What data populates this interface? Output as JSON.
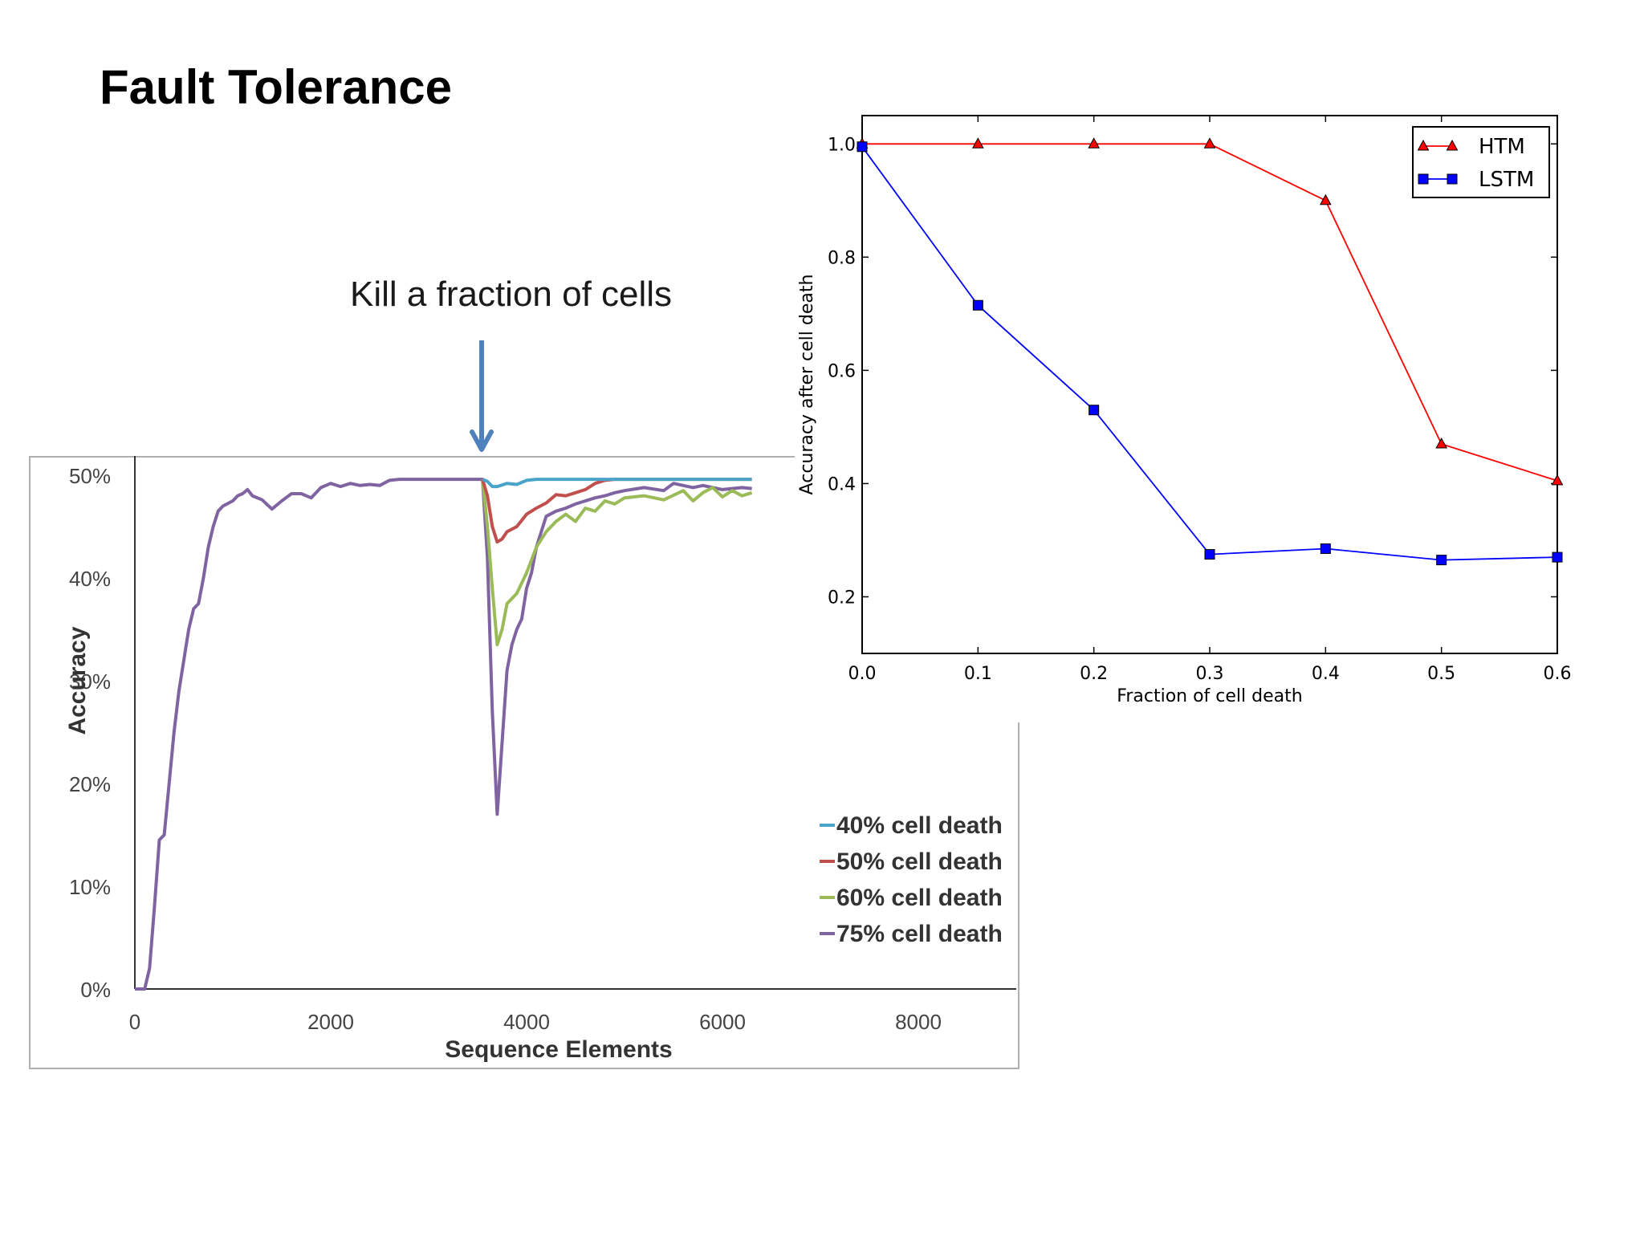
{
  "slide": {
    "title": "Fault Tolerance",
    "annotation": "Kill a fraction of cells"
  },
  "chart_data": [
    {
      "type": "line",
      "title": "",
      "xlabel": "Sequence Elements",
      "ylabel": "Accuracy",
      "xlim": [
        0,
        9000
      ],
      "ylim": [
        0,
        50
      ],
      "x_ticks": [
        "0",
        "2000",
        "4000",
        "6000",
        "8000"
      ],
      "y_ticks": [
        "0%",
        "10%",
        "20%",
        "30%",
        "40%",
        "50%"
      ],
      "legend_position": "bottom-right",
      "series": [
        {
          "name": "40% cell death",
          "color": "#4aa3c8",
          "points": [
            [
              3550,
              49.6
            ],
            [
              3600,
              49.4
            ],
            [
              3650,
              48.9
            ],
            [
              3700,
              48.9
            ],
            [
              3800,
              49.2
            ],
            [
              3900,
              49.1
            ],
            [
              4000,
              49.5
            ],
            [
              4100,
              49.6
            ],
            [
              4200,
              49.6
            ],
            [
              5000,
              49.6
            ],
            [
              6300,
              49.6
            ]
          ]
        },
        {
          "name": "50% cell death",
          "color": "#c0504d",
          "points": [
            [
              3550,
              49.6
            ],
            [
              3600,
              48.0
            ],
            [
              3650,
              45.0
            ],
            [
              3700,
              43.5
            ],
            [
              3750,
              43.8
            ],
            [
              3800,
              44.5
            ],
            [
              3900,
              45.0
            ],
            [
              4000,
              46.2
            ],
            [
              4100,
              46.8
            ],
            [
              4200,
              47.3
            ],
            [
              4300,
              48.1
            ],
            [
              4400,
              48.0
            ],
            [
              4500,
              48.3
            ],
            [
              4600,
              48.6
            ],
            [
              4700,
              49.2
            ],
            [
              4800,
              49.5
            ],
            [
              4900,
              49.6
            ],
            [
              6300,
              49.6
            ]
          ]
        },
        {
          "name": "60% cell death",
          "color": "#9bbb59",
          "points": [
            [
              3550,
              49.6
            ],
            [
              3600,
              45.0
            ],
            [
              3650,
              39.0
            ],
            [
              3700,
              33.5
            ],
            [
              3750,
              35.0
            ],
            [
              3800,
              37.5
            ],
            [
              3900,
              38.5
            ],
            [
              4000,
              40.5
            ],
            [
              4100,
              43.0
            ],
            [
              4200,
              44.5
            ],
            [
              4300,
              45.5
            ],
            [
              4400,
              46.2
            ],
            [
              4500,
              45.5
            ],
            [
              4600,
              46.8
            ],
            [
              4700,
              46.5
            ],
            [
              4800,
              47.5
            ],
            [
              4900,
              47.2
            ],
            [
              5000,
              47.8
            ],
            [
              5200,
              48.0
            ],
            [
              5400,
              47.6
            ],
            [
              5600,
              48.5
            ],
            [
              5700,
              47.5
            ],
            [
              5800,
              48.3
            ],
            [
              5900,
              48.8
            ],
            [
              6000,
              47.9
            ],
            [
              6100,
              48.5
            ],
            [
              6200,
              48.0
            ],
            [
              6300,
              48.3
            ]
          ]
        },
        {
          "name": "75% cell death",
          "color": "#8064a2",
          "points": [
            [
              0,
              0
            ],
            [
              100,
              0
            ],
            [
              150,
              2
            ],
            [
              200,
              8
            ],
            [
              250,
              14.5
            ],
            [
              300,
              15
            ],
            [
              350,
              20
            ],
            [
              400,
              25
            ],
            [
              450,
              29
            ],
            [
              500,
              32
            ],
            [
              550,
              35
            ],
            [
              600,
              37
            ],
            [
              650,
              37.5
            ],
            [
              700,
              40
            ],
            [
              750,
              43
            ],
            [
              800,
              45
            ],
            [
              850,
              46.5
            ],
            [
              900,
              47
            ],
            [
              1000,
              47.5
            ],
            [
              1050,
              48
            ],
            [
              1100,
              48.2
            ],
            [
              1150,
              48.6
            ],
            [
              1200,
              48
            ],
            [
              1300,
              47.6
            ],
            [
              1400,
              46.7
            ],
            [
              1500,
              47.5
            ],
            [
              1600,
              48.2
            ],
            [
              1700,
              48.2
            ],
            [
              1800,
              47.8
            ],
            [
              1900,
              48.8
            ],
            [
              2000,
              49.2
            ],
            [
              2100,
              48.9
            ],
            [
              2200,
              49.2
            ],
            [
              2300,
              49
            ],
            [
              2400,
              49.1
            ],
            [
              2500,
              49
            ],
            [
              2600,
              49.5
            ],
            [
              2700,
              49.6
            ],
            [
              3550,
              49.6
            ],
            [
              3600,
              42
            ],
            [
              3650,
              27
            ],
            [
              3700,
              17
            ],
            [
              3750,
              24
            ],
            [
              3800,
              31
            ],
            [
              3850,
              33.5
            ],
            [
              3900,
              35
            ],
            [
              3950,
              36
            ],
            [
              4000,
              39
            ],
            [
              4050,
              40.5
            ],
            [
              4100,
              43
            ],
            [
              4200,
              46
            ],
            [
              4300,
              46.5
            ],
            [
              4400,
              46.8
            ],
            [
              4500,
              47.2
            ],
            [
              4600,
              47.5
            ],
            [
              4700,
              47.8
            ],
            [
              4800,
              48
            ],
            [
              4900,
              48.3
            ],
            [
              5000,
              48.5
            ],
            [
              5200,
              48.8
            ],
            [
              5400,
              48.5
            ],
            [
              5500,
              49.2
            ],
            [
              5700,
              48.8
            ],
            [
              5800,
              49
            ],
            [
              6000,
              48.6
            ],
            [
              6200,
              48.8
            ],
            [
              6300,
              48.7
            ]
          ]
        }
      ]
    },
    {
      "type": "line",
      "title": "",
      "xlabel": "Fraction of cell death",
      "ylabel": "Accuracy after cell death",
      "xlim": [
        0,
        0.6
      ],
      "ylim": [
        0.1,
        1.05
      ],
      "x_ticks": [
        "0.0",
        "0.1",
        "0.2",
        "0.3",
        "0.4",
        "0.5",
        "0.6"
      ],
      "y_ticks": [
        "0.2",
        "0.4",
        "0.6",
        "0.8",
        "1.0"
      ],
      "legend_position": "top-right",
      "series": [
        {
          "name": "HTM",
          "color": "#ff0000",
          "marker": "triangle",
          "x": [
            0.0,
            0.1,
            0.2,
            0.3,
            0.4,
            0.5,
            0.6
          ],
          "y": [
            1.0,
            1.0,
            1.0,
            1.0,
            0.9,
            0.47,
            0.405
          ]
        },
        {
          "name": "LSTM",
          "color": "#0000ff",
          "marker": "square",
          "x": [
            0.0,
            0.1,
            0.2,
            0.3,
            0.4,
            0.5,
            0.6
          ],
          "y": [
            0.995,
            0.715,
            0.53,
            0.275,
            0.285,
            0.265,
            0.27
          ]
        }
      ]
    }
  ]
}
